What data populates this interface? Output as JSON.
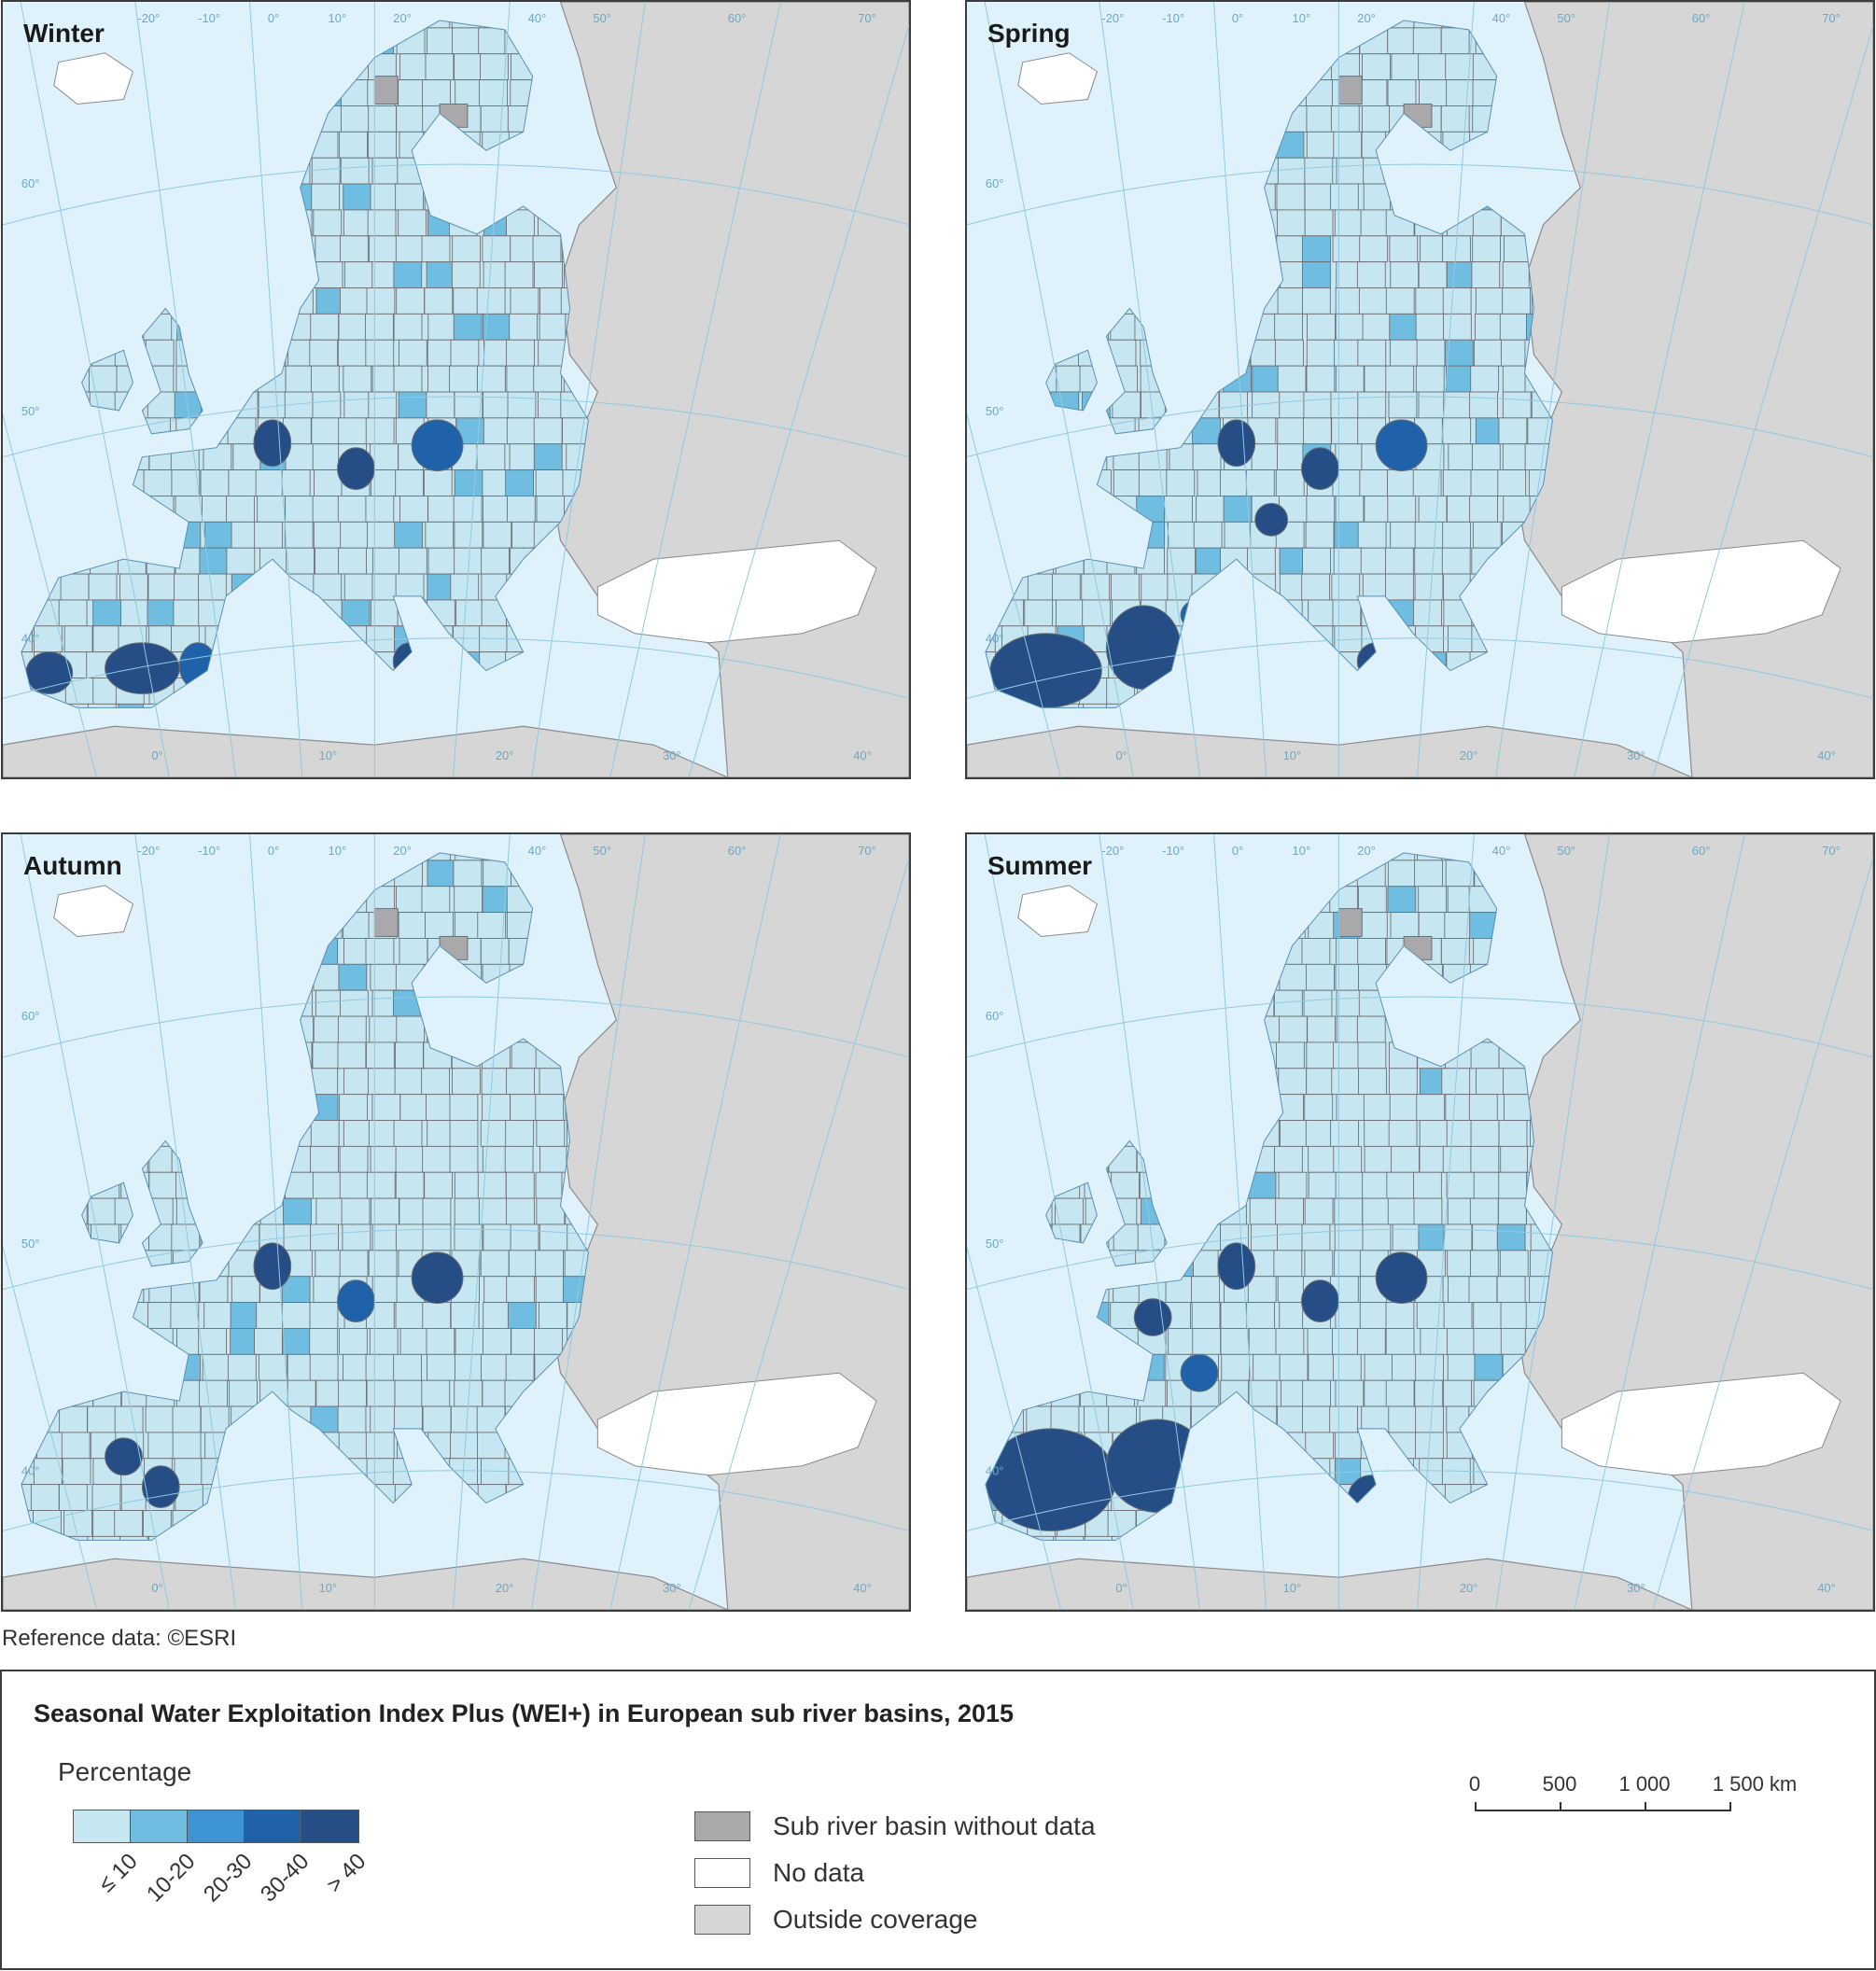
{
  "maps": [
    {
      "title": "Winter"
    },
    {
      "title": "Spring"
    },
    {
      "title": "Autumn"
    },
    {
      "title": "Summer"
    }
  ],
  "reference": "Reference data: ©ESRI",
  "legend": {
    "title": "Seasonal Water Exploitation Index Plus (WEI+) in European sub river basins, 2015",
    "subtitle": "Percentage",
    "classes": [
      {
        "label": "≤ 10",
        "color": "#c6e7f1"
      },
      {
        "label": "10-20",
        "color": "#6fbde0"
      },
      {
        "label": "20-30",
        "color": "#3e93d2"
      },
      {
        "label": "30-40",
        "color": "#1f62a9"
      },
      {
        "label": "> 40",
        "color": "#264e86"
      }
    ],
    "categories": [
      {
        "label": "Sub river basin without data",
        "color": "#a9a9ac"
      },
      {
        "label": "No data",
        "color": "#ffffff"
      },
      {
        "label": "Outside coverage",
        "color": "#d6d6d7"
      }
    ],
    "scale": {
      "ticks": [
        "0",
        "500",
        "1 000",
        "1 500 km"
      ]
    }
  },
  "graticule": {
    "top_labels": [
      "-20°",
      "-10°",
      "0°",
      "10°",
      "20°",
      "40°",
      "50°",
      "60°",
      "70°"
    ],
    "bottom_labels": [
      "0°",
      "10°",
      "20°",
      "30°",
      "40°"
    ],
    "lat_labels": [
      "60°",
      "50°",
      "40°"
    ]
  },
  "colors": {
    "sea": "#dff2fb",
    "land_outside": "#d6d6d7",
    "basin_border": "#6e6e73",
    "no_data": "#ffffff"
  }
}
